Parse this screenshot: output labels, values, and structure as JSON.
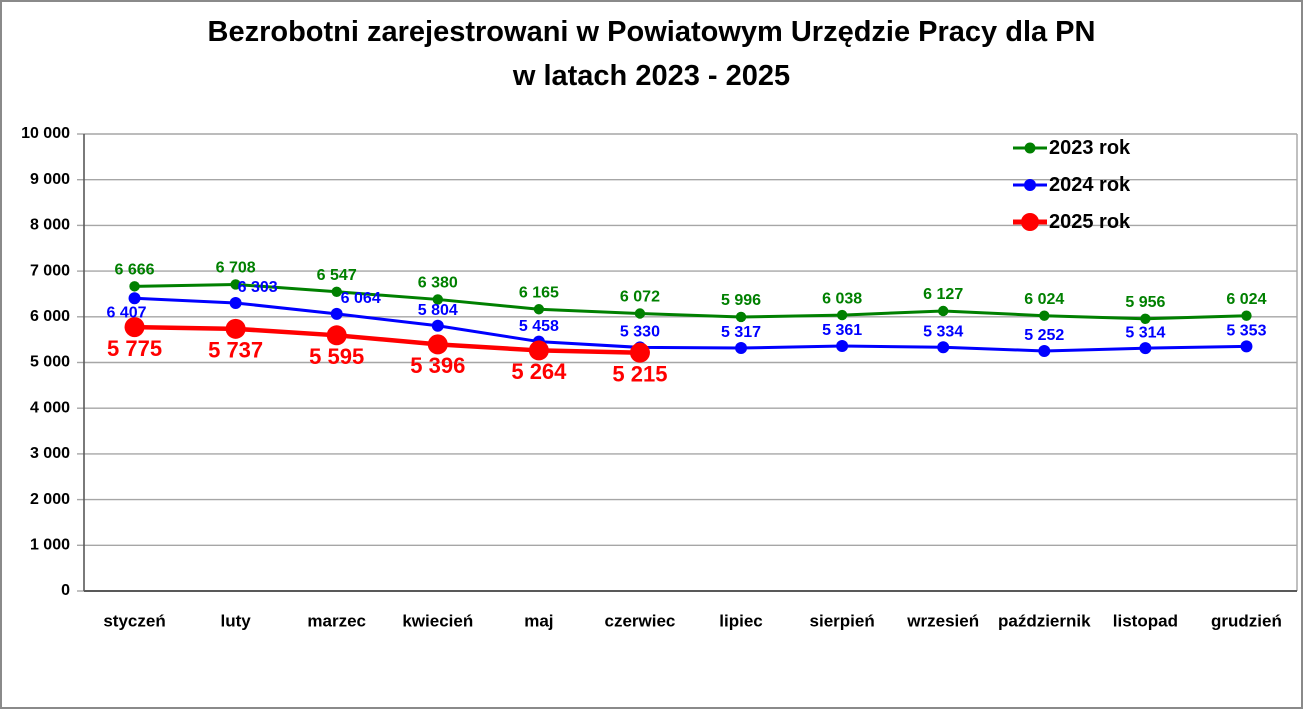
{
  "window": {
    "background": "#ffffff",
    "border_color": "#8a8a8a"
  },
  "title": {
    "line1": "Bezrobotni zarejestrowani w Powiatowym Urzędzie Pracy dla PN",
    "line2": "w latach 2023 - 2025"
  },
  "chart_data": {
    "type": "line",
    "title": "Bezrobotni zarejestrowani w Powiatowym Urzędzie Pracy dla PN w latach 2023 - 2025",
    "categories": [
      "styczeń",
      "luty",
      "marzec",
      "kwiecień",
      "maj",
      "czerwiec",
      "lipiec",
      "sierpień",
      "wrzesień",
      "październik",
      "listopad",
      "grudzień"
    ],
    "series": [
      {
        "name": "2023 rok",
        "color": "#008000",
        "values": [
          6666,
          6708,
          6547,
          6380,
          6165,
          6072,
          5996,
          6038,
          6127,
          6024,
          5956,
          6024
        ]
      },
      {
        "name": "2024 rok",
        "color": "#0000FF",
        "values": [
          6407,
          6303,
          6064,
          5804,
          5458,
          5330,
          5317,
          5361,
          5334,
          5252,
          5314,
          5353
        ]
      },
      {
        "name": "2025 rok",
        "color": "#FF0000",
        "values": [
          5775,
          5737,
          5595,
          5396,
          5264,
          5215
        ]
      }
    ],
    "ylim": [
      0,
      10000
    ],
    "ytick_step": 1000,
    "ytick_labels": [
      "0",
      "1 000",
      "2 000",
      "3 000",
      "4 000",
      "5 000",
      "6 000",
      "7 000",
      "8 000",
      "9 000",
      "10 000"
    ],
    "number_format": "space-thousands",
    "grid": "horizontal",
    "gridline_color": "#A6A6A6",
    "axis_color": "#595959",
    "text_color": "#000000",
    "legend_position": "inside-top-right",
    "data_labels": true
  }
}
